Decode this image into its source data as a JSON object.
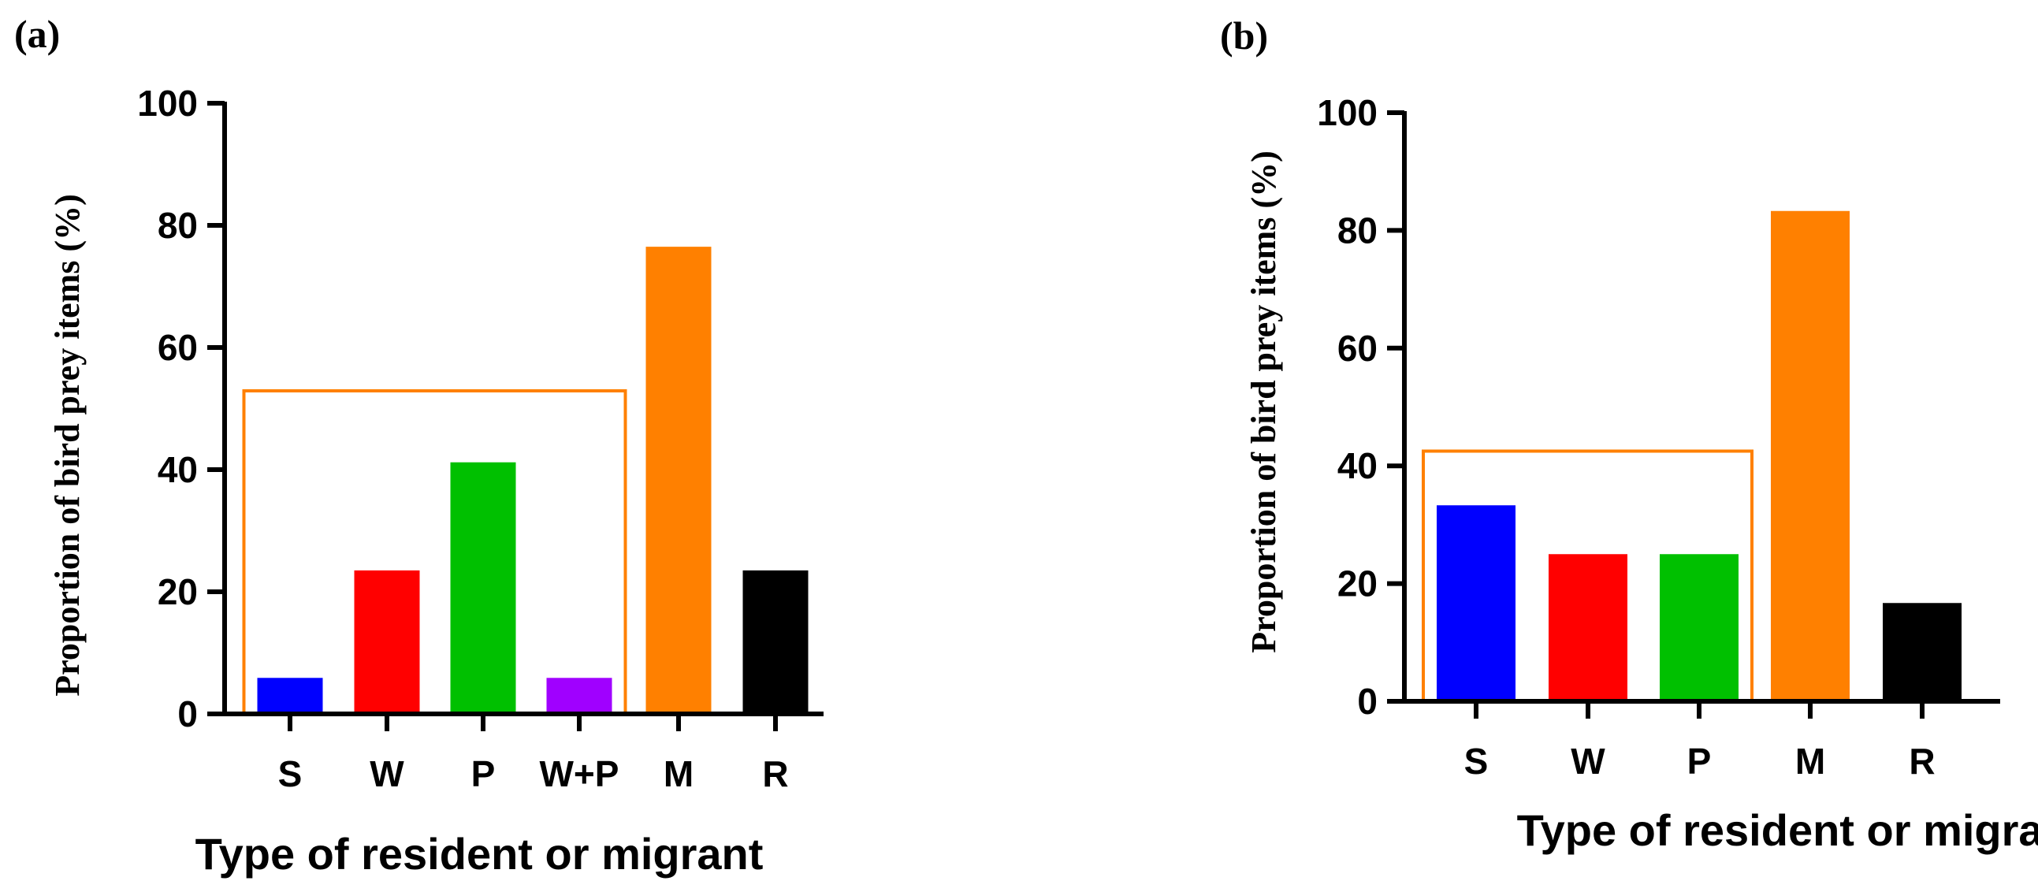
{
  "chart_data": [
    {
      "type": "bar",
      "panel_label": "(a)",
      "title": "",
      "xlabel": "Type of resident or migrant",
      "ylabel": "Proportion of bird prey items (%)",
      "ylim": [
        0,
        100
      ],
      "yticks": [
        "0",
        "20",
        "40",
        "60",
        "80",
        "100"
      ],
      "categories": [
        "S",
        "W",
        "P",
        "W+P",
        "M",
        "R"
      ],
      "values": [
        5.9,
        23.5,
        41.2,
        5.9,
        76.5,
        23.5
      ],
      "colors": [
        "#0000ff",
        "#ff0000",
        "#00c000",
        "#a000ff",
        "#ff8000",
        "#000000"
      ],
      "bracket": {
        "from_category": "S",
        "to_category": "W+P",
        "level": 52.9,
        "color": "#ff8000"
      }
    },
    {
      "type": "bar",
      "panel_label": "(b)",
      "title": "",
      "xlabel": "Type of resident or migrant",
      "ylabel": "Proportion of bird prey items (%)",
      "ylim": [
        0,
        100
      ],
      "yticks": [
        "0",
        "20",
        "40",
        "60",
        "80",
        "100"
      ],
      "categories": [
        "S",
        "W",
        "P",
        "M",
        "R"
      ],
      "values": [
        33.3,
        25.0,
        25.0,
        83.3,
        16.7
      ],
      "colors": [
        "#0000ff",
        "#ff0000",
        "#00c000",
        "#ff8000",
        "#000000"
      ],
      "bracket": {
        "from_category": "S",
        "to_category": "P",
        "level": 42.5,
        "color": "#ff8000"
      }
    }
  ]
}
